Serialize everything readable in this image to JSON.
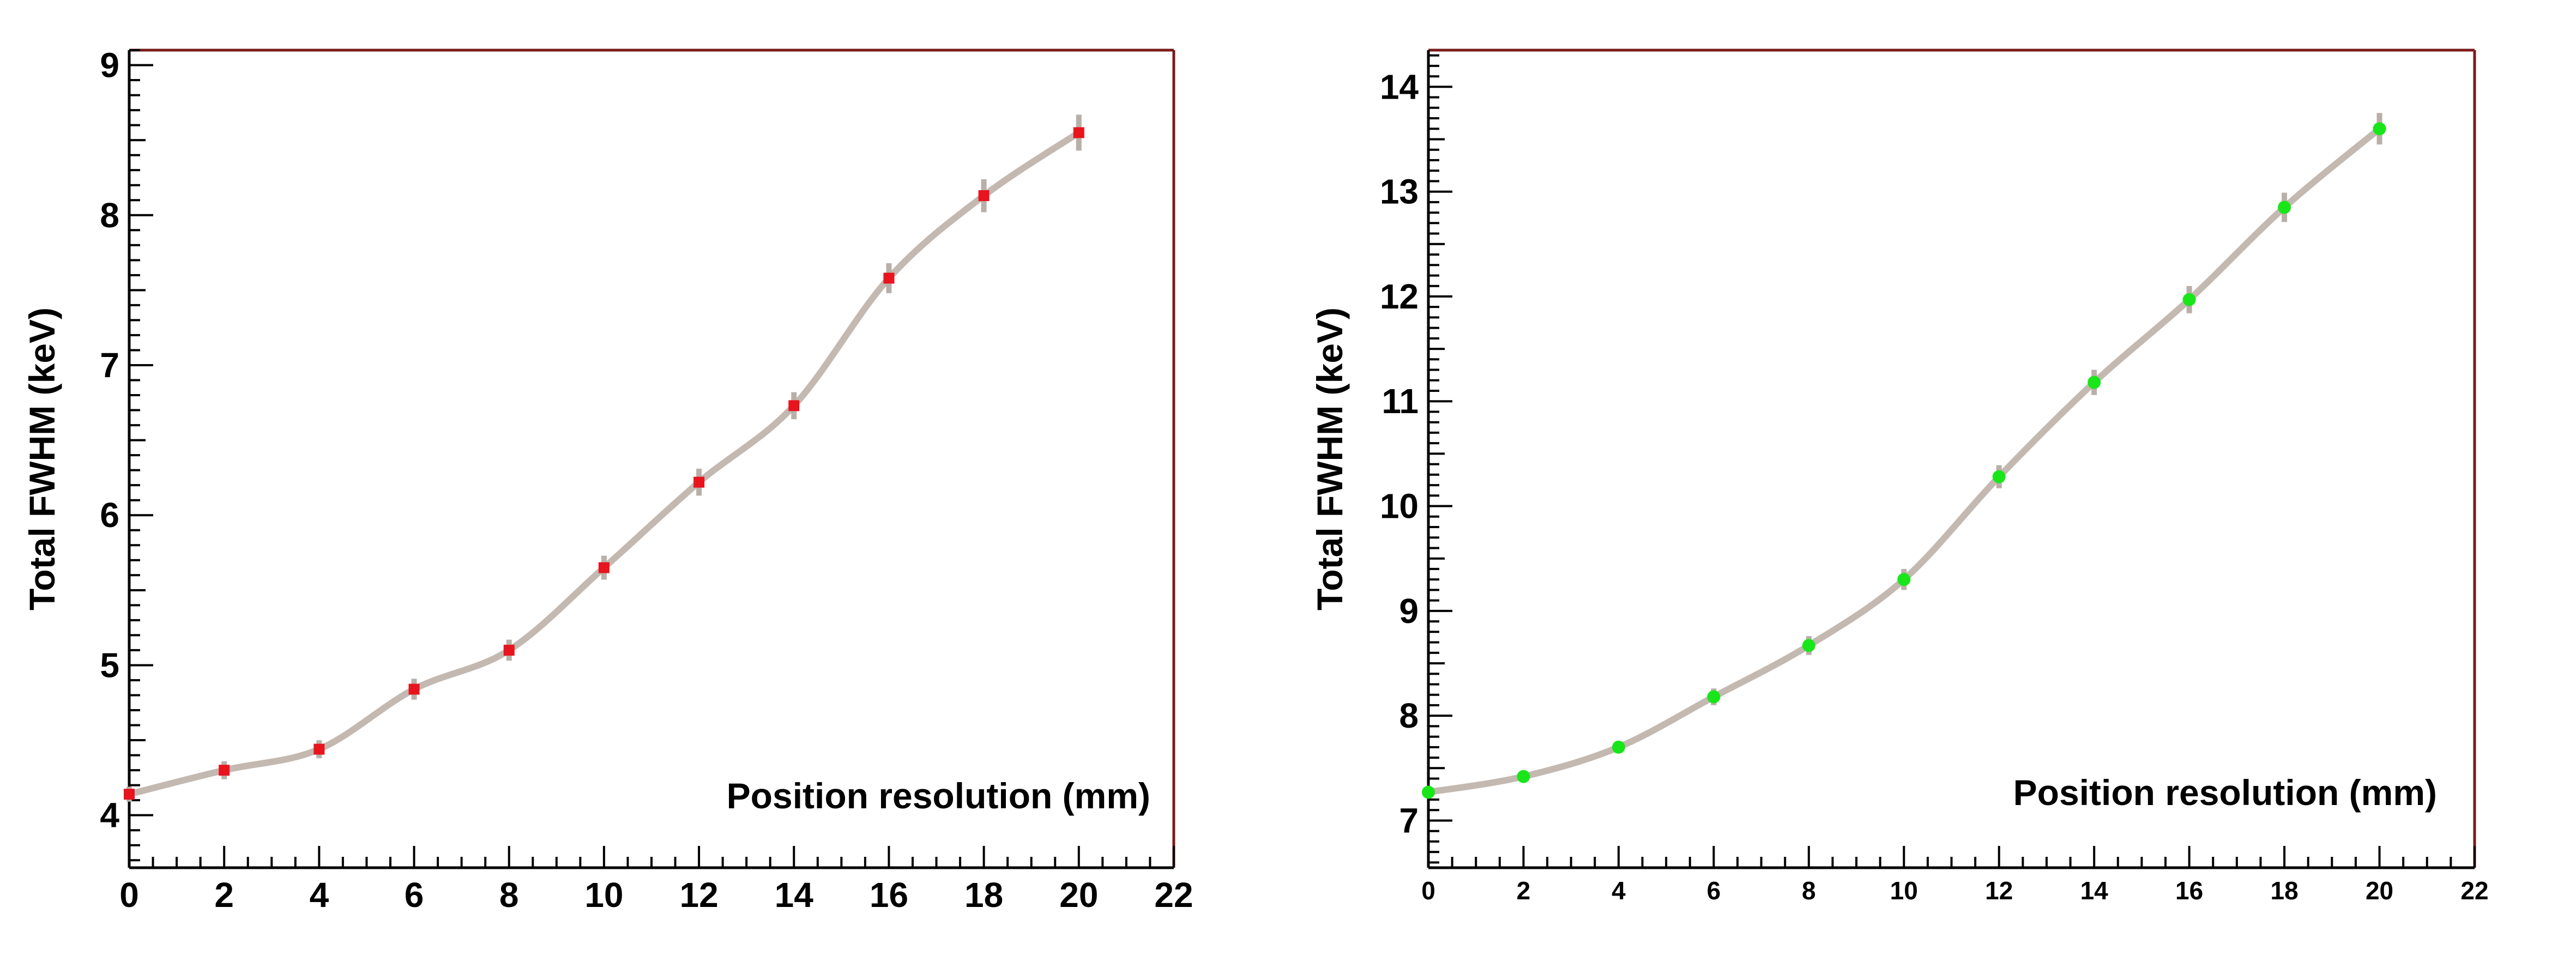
{
  "chart_data": [
    {
      "type": "line",
      "title": "",
      "xlabel": "Position resolution (mm)",
      "ylabel": "Total FWHM (keV)",
      "xlim": [
        0,
        22
      ],
      "ylim": [
        3.65,
        9.1
      ],
      "xticks": [
        0,
        2,
        4,
        6,
        8,
        10,
        12,
        14,
        16,
        18,
        20,
        22
      ],
      "yticks": [
        4,
        5,
        6,
        7,
        8,
        9
      ],
      "grid": false,
      "series": [
        {
          "name": "FWHM",
          "marker": "square",
          "marker_color": "#e8141e",
          "line_color": "#c3b9b0",
          "x": [
            0,
            2,
            4,
            6,
            8,
            10,
            12,
            14,
            16,
            18,
            20
          ],
          "y": [
            4.14,
            4.3,
            4.44,
            4.84,
            5.1,
            5.65,
            6.22,
            6.73,
            7.58,
            8.13,
            8.55
          ],
          "err": [
            0.05,
            0.06,
            0.06,
            0.07,
            0.07,
            0.08,
            0.09,
            0.09,
            0.1,
            0.11,
            0.12
          ]
        }
      ]
    },
    {
      "type": "line",
      "title": "",
      "xlabel": "Position resolution (mm)",
      "ylabel": "Total FWHM (keV)",
      "xlim": [
        0,
        22
      ],
      "ylim": [
        6.55,
        14.35
      ],
      "xticks": [
        0,
        2,
        4,
        6,
        8,
        10,
        12,
        14,
        16,
        18,
        20,
        22
      ],
      "yticks": [
        7,
        8,
        9,
        10,
        11,
        12,
        13,
        14
      ],
      "grid": false,
      "series": [
        {
          "name": "FWHM",
          "marker": "circle",
          "marker_color": "#19e619",
          "line_color": "#c3b9b0",
          "x": [
            0,
            2,
            4,
            6,
            8,
            10,
            12,
            14,
            16,
            18,
            20
          ],
          "y": [
            7.27,
            7.42,
            7.7,
            8.18,
            8.67,
            9.3,
            10.28,
            11.18,
            11.97,
            12.85,
            13.6
          ],
          "err": [
            0.04,
            0.05,
            0.05,
            0.08,
            0.09,
            0.1,
            0.11,
            0.12,
            0.13,
            0.14,
            0.15
          ]
        }
      ]
    }
  ]
}
